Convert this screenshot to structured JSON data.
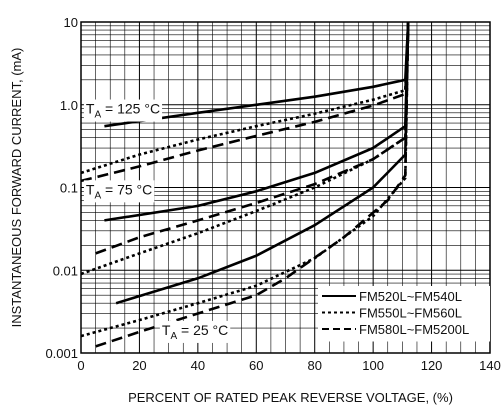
{
  "chart_data": {
    "type": "line",
    "xlabel": "PERCENT OF RATED PEAK REVERSE VOLTAGE, (%)",
    "ylabel": "INSTANTANEOUS FORWARD CURRENT, (mA)",
    "xlim": [
      0,
      140
    ],
    "ylim": [
      0.001,
      10
    ],
    "yscale": "log",
    "grid": true,
    "x_ticks": [
      0,
      20,
      40,
      60,
      80,
      100,
      120,
      140
    ],
    "x_tick_labels": [
      "0",
      "20",
      "40",
      "60",
      "80",
      "100",
      "120",
      "140"
    ],
    "y_ticks": [
      0.001,
      0.01,
      0.1,
      1,
      10
    ],
    "y_tick_labels": [
      "0.001",
      "0.01",
      "0.1",
      "1.0",
      "10"
    ],
    "legend_position": "bottom-right",
    "legend": [
      {
        "label": "FM520L~FM540L",
        "style": "solid"
      },
      {
        "label": "FM550L~FM560L",
        "style": "dotted"
      },
      {
        "label": "FM580L~FM5200L",
        "style": "dashed"
      }
    ],
    "annotations": [
      {
        "prefix": "T",
        "sub": "A",
        "text": " = 125 °C",
        "x": 1,
        "y": 0.9
      },
      {
        "prefix": "T",
        "sub": "A",
        "text": " = 75 °C",
        "x": 1,
        "y": 0.095
      },
      {
        "prefix": "T",
        "sub": "A",
        "text": " = 25 °C",
        "x": 27,
        "y": 0.0019
      }
    ],
    "series": [
      {
        "group": "TA = 125 °C",
        "style": "solid",
        "points": [
          [
            8,
            0.55
          ],
          [
            40,
            0.8
          ],
          [
            60,
            1.0
          ],
          [
            80,
            1.25
          ],
          [
            100,
            1.65
          ],
          [
            111,
            2.0
          ],
          [
            112,
            10
          ]
        ]
      },
      {
        "group": "TA = 125 °C",
        "style": "dotted",
        "points": [
          [
            0,
            0.15
          ],
          [
            20,
            0.25
          ],
          [
            40,
            0.38
          ],
          [
            60,
            0.55
          ],
          [
            80,
            0.78
          ],
          [
            100,
            1.15
          ],
          [
            111,
            1.5
          ],
          [
            112,
            10
          ]
        ]
      },
      {
        "group": "TA = 125 °C",
        "style": "dashed",
        "points": [
          [
            0,
            0.12
          ],
          [
            20,
            0.18
          ],
          [
            40,
            0.28
          ],
          [
            60,
            0.42
          ],
          [
            80,
            0.62
          ],
          [
            100,
            0.98
          ],
          [
            111,
            1.35
          ],
          [
            112,
            10
          ]
        ]
      },
      {
        "group": "TA = 75 °C",
        "style": "solid",
        "points": [
          [
            8,
            0.04
          ],
          [
            40,
            0.06
          ],
          [
            60,
            0.09
          ],
          [
            80,
            0.15
          ],
          [
            100,
            0.3
          ],
          [
            111,
            0.55
          ],
          [
            112,
            10
          ]
        ]
      },
      {
        "group": "TA = 75 °C",
        "style": "dotted",
        "points": [
          [
            0,
            0.009
          ],
          [
            20,
            0.016
          ],
          [
            40,
            0.028
          ],
          [
            60,
            0.052
          ],
          [
            80,
            0.1
          ],
          [
            100,
            0.22
          ],
          [
            111,
            0.4
          ],
          [
            112,
            10
          ]
        ]
      },
      {
        "group": "TA = 75 °C",
        "style": "dashed",
        "points": [
          [
            5,
            0.016
          ],
          [
            20,
            0.025
          ],
          [
            40,
            0.04
          ],
          [
            60,
            0.065
          ],
          [
            80,
            0.11
          ],
          [
            100,
            0.22
          ],
          [
            111,
            0.4
          ],
          [
            112,
            10
          ]
        ]
      },
      {
        "group": "TA = 25 °C",
        "style": "solid",
        "points": [
          [
            12,
            0.004
          ],
          [
            40,
            0.008
          ],
          [
            60,
            0.015
          ],
          [
            80,
            0.035
          ],
          [
            100,
            0.1
          ],
          [
            111,
            0.25
          ],
          [
            112,
            10
          ]
        ]
      },
      {
        "group": "TA = 25 °C",
        "style": "dotted",
        "points": [
          [
            0,
            0.0016
          ],
          [
            20,
            0.0025
          ],
          [
            40,
            0.004
          ],
          [
            60,
            0.0065
          ],
          [
            80,
            0.014
          ],
          [
            100,
            0.045
          ],
          [
            111,
            0.13
          ],
          [
            112,
            10
          ]
        ]
      },
      {
        "group": "TA = 25 °C",
        "style": "dashed",
        "points": [
          [
            5,
            0.0012
          ],
          [
            20,
            0.0018
          ],
          [
            40,
            0.003
          ],
          [
            60,
            0.005
          ],
          [
            70,
            0.008
          ],
          [
            90,
            0.025
          ],
          [
            105,
            0.07
          ],
          [
            111,
            0.14
          ],
          [
            112,
            10
          ]
        ]
      }
    ]
  }
}
